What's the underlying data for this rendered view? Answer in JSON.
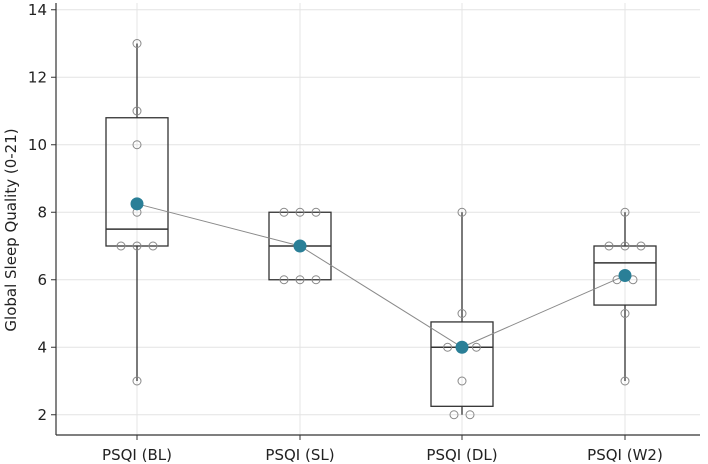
{
  "chart_data": {
    "type": "box",
    "title": "",
    "xlabel": "",
    "ylabel": "Global Sleep Quality (0-21)",
    "ylim": [
      1.4,
      14.2
    ],
    "yticks": [
      2,
      4,
      6,
      8,
      10,
      12,
      14
    ],
    "grid": true,
    "categories": [
      "PSQI (BL)",
      "PSQI (SL)",
      "PSQI (DL)",
      "PSQI (W2)"
    ],
    "boxes": [
      {
        "q1": 7.0,
        "median": 7.5,
        "q3": 10.8,
        "whisker_low": 3,
        "whisker_high": 13,
        "mean": 8.25
      },
      {
        "q1": 6.0,
        "median": 7.0,
        "q3": 8.0,
        "whisker_low": 6,
        "whisker_high": 8,
        "mean": 7.0
      },
      {
        "q1": 2.25,
        "median": 4.0,
        "q3": 4.75,
        "whisker_low": 2,
        "whisker_high": 8,
        "mean": 4.0
      },
      {
        "q1": 5.25,
        "median": 6.5,
        "q3": 7.0,
        "whisker_low": 3,
        "whisker_high": 8,
        "mean": 6.125
      }
    ],
    "points": [
      [
        {
          "y": 13,
          "dx": 0
        },
        {
          "y": 11,
          "dx": 0
        },
        {
          "y": 10,
          "dx": 0
        },
        {
          "y": 8,
          "dx": 0
        },
        {
          "y": 7,
          "dx": -0.2
        },
        {
          "y": 7,
          "dx": 0
        },
        {
          "y": 7,
          "dx": 0.2
        },
        {
          "y": 3,
          "dx": 0
        }
      ],
      [
        {
          "y": 8,
          "dx": -0.2
        },
        {
          "y": 8,
          "dx": 0
        },
        {
          "y": 8,
          "dx": 0.2
        },
        {
          "y": 7,
          "dx": 0
        },
        {
          "y": 6,
          "dx": -0.2
        },
        {
          "y": 6,
          "dx": 0
        },
        {
          "y": 6,
          "dx": 0.2
        }
      ],
      [
        {
          "y": 8,
          "dx": 0
        },
        {
          "y": 5,
          "dx": 0
        },
        {
          "y": 4,
          "dx": -0.18
        },
        {
          "y": 4,
          "dx": 0.18
        },
        {
          "y": 3,
          "dx": 0
        },
        {
          "y": 2,
          "dx": -0.1
        },
        {
          "y": 2,
          "dx": 0.1
        }
      ],
      [
        {
          "y": 8,
          "dx": 0
        },
        {
          "y": 7,
          "dx": -0.2
        },
        {
          "y": 7,
          "dx": 0
        },
        {
          "y": 7,
          "dx": 0.2
        },
        {
          "y": 6,
          "dx": -0.1
        },
        {
          "y": 6,
          "dx": 0.1
        },
        {
          "y": 5,
          "dx": 0
        },
        {
          "y": 3,
          "dx": 0
        }
      ]
    ],
    "mean_color": "#2a7f97",
    "box_color": "#333333",
    "point_color": "#888888",
    "grid_color": "#e4e4e4"
  }
}
